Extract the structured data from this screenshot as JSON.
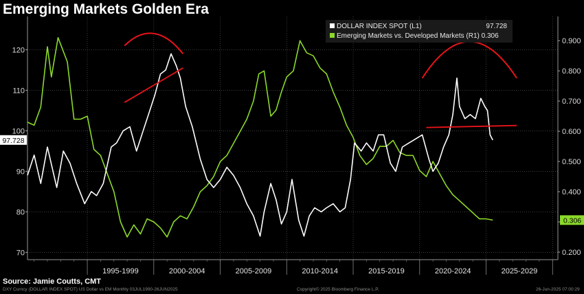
{
  "title": "Emerging Markets Golden Era",
  "source": "Source: Jamie Coutts, CMT",
  "footer": {
    "left": "DXY Curncy (DOLLAR INDEX SPOT) US Dollar vs EM  Monthly 03JUL1990-26JUN2025",
    "center": "Copyright© 2025 Bloomberg Finance L.P.",
    "right": "26-Jun-2025 07:00:29"
  },
  "colors": {
    "background": "#000000",
    "dxy": "#ffffff",
    "em": "#8cd92a",
    "annotation": "#e8141b",
    "grid": "#555555"
  },
  "chart_data": {
    "type": "line",
    "title": "Emerging Markets Golden Era",
    "x_tick_labels": [
      "1995-1999",
      "2000-2004",
      "2005-2009",
      "2010-2014",
      "2015-2019",
      "2020-2024",
      "2025-2029"
    ],
    "x_range": [
      1990.5,
      2030.4
    ],
    "left_axis": {
      "ticks": [
        70,
        80,
        90,
        100,
        110,
        120
      ],
      "range": [
        68.2,
        128.2
      ]
    },
    "right_axis": {
      "ticks": [
        0.2,
        0.3,
        0.4,
        0.5,
        0.6,
        0.7,
        0.8,
        0.9
      ],
      "tick_labels": [
        "0.200",
        "0.300",
        "0.400",
        "0.500",
        "0.600",
        "0.700",
        "0.800",
        "0.900"
      ],
      "range": [
        0.175,
        0.98
      ]
    },
    "grid": true,
    "legend_position": "top-right",
    "series": [
      {
        "name": "DOLLAR INDEX SPOT (L1)",
        "last_value": 97.728,
        "last_label": "97.728",
        "axis": "left",
        "color": "#ffffff",
        "x": [
          1990.5,
          1991.0,
          1991.5,
          1992.0,
          1992.7,
          1993.2,
          1993.7,
          1994.2,
          1994.8,
          1995.3,
          1995.7,
          1996.2,
          1996.8,
          1997.2,
          1997.7,
          1998.2,
          1998.7,
          1999.1,
          1999.6,
          2000.1,
          2000.5,
          2000.9,
          2001.3,
          2001.7,
          2002.0,
          2002.4,
          2002.9,
          2003.5,
          2004.0,
          2004.5,
          2005.0,
          2005.5,
          2006.0,
          2006.5,
          2007.0,
          2007.5,
          2008.0,
          2008.3,
          2008.8,
          2009.2,
          2009.6,
          2010.0,
          2010.4,
          2010.9,
          2011.3,
          2011.7,
          2012.1,
          2012.6,
          2013.0,
          2013.5,
          2014.0,
          2014.4,
          2014.8,
          2015.1,
          2015.6,
          2016.0,
          2016.5,
          2016.9,
          2017.3,
          2017.8,
          2018.2,
          2018.7,
          2019.2,
          2019.7,
          2020.2,
          2020.7,
          2021.0,
          2021.4,
          2021.8,
          2022.2,
          2022.5,
          2022.8,
          2023.0,
          2023.4,
          2023.8,
          2024.2,
          2024.6,
          2024.9,
          2025.1,
          2025.3,
          2025.5
        ],
        "values": [
          89,
          94,
          87,
          96,
          86,
          95,
          92,
          87,
          82,
          85,
          84,
          87,
          96,
          97,
          100,
          101,
          95,
          99,
          104,
          109,
          114,
          115,
          119,
          116,
          113,
          106,
          101,
          93,
          88,
          86,
          88,
          91,
          89,
          86,
          82,
          79,
          74,
          80,
          87,
          83,
          77,
          80,
          88,
          78,
          74,
          79,
          81,
          80,
          81,
          82,
          80,
          81,
          88,
          97,
          95,
          97,
          95,
          99,
          99,
          92,
          90,
          96,
          97,
          98,
          99,
          93,
          90,
          92,
          96,
          99,
          104,
          113,
          106,
          103,
          104,
          103,
          108,
          106,
          105,
          99,
          97.7
        ]
      },
      {
        "name": "Emerging Markets vs. Developed Markets (R1)",
        "last_value": 0.306,
        "last_label": "0.306",
        "axis": "right",
        "color": "#8cd92a",
        "x": [
          1990.5,
          1991.0,
          1991.5,
          1992.0,
          1992.3,
          1992.8,
          1993.5,
          1994.0,
          1994.5,
          1995.0,
          1995.5,
          1996.0,
          1996.5,
          1997.0,
          1997.5,
          1998.0,
          1998.5,
          1999.0,
          1999.5,
          2000.0,
          2000.5,
          2001.0,
          2001.5,
          2002.0,
          2002.5,
          2003.0,
          2003.5,
          2004.0,
          2004.5,
          2005.0,
          2005.5,
          2006.0,
          2006.5,
          2007.0,
          2007.5,
          2007.9,
          2008.3,
          2008.8,
          2009.2,
          2009.6,
          2010.0,
          2010.5,
          2011.0,
          2011.5,
          2012.0,
          2012.5,
          2013.0,
          2013.5,
          2014.0,
          2014.5,
          2015.0,
          2015.5,
          2016.0,
          2016.5,
          2017.0,
          2017.5,
          2018.0,
          2018.5,
          2019.0,
          2019.5,
          2020.0,
          2020.5,
          2021.0,
          2021.5,
          2022.0,
          2022.5,
          2023.0,
          2023.5,
          2024.0,
          2024.5,
          2025.0,
          2025.5
        ],
        "values": [
          0.63,
          0.62,
          0.68,
          0.88,
          0.78,
          0.91,
          0.83,
          0.64,
          0.64,
          0.65,
          0.54,
          0.52,
          0.46,
          0.4,
          0.3,
          0.25,
          0.29,
          0.26,
          0.31,
          0.3,
          0.28,
          0.25,
          0.3,
          0.32,
          0.31,
          0.35,
          0.4,
          0.42,
          0.45,
          0.5,
          0.52,
          0.56,
          0.6,
          0.64,
          0.7,
          0.79,
          0.8,
          0.65,
          0.67,
          0.73,
          0.78,
          0.8,
          0.9,
          0.86,
          0.85,
          0.81,
          0.79,
          0.73,
          0.68,
          0.62,
          0.58,
          0.52,
          0.49,
          0.51,
          0.55,
          0.55,
          0.57,
          0.53,
          0.52,
          0.52,
          0.47,
          0.45,
          0.5,
          0.46,
          0.42,
          0.39,
          0.37,
          0.35,
          0.33,
          0.31,
          0.31,
          0.306
        ]
      }
    ],
    "annotations": [
      {
        "type": "arc",
        "x": [
          1997.8,
          2002.2
        ],
        "y": [
          121,
          119
        ],
        "peak": 124,
        "axis": "left"
      },
      {
        "type": "line",
        "x1": 1997.8,
        "y1": 107,
        "x2": 2002.2,
        "y2": 115.5,
        "axis": "left"
      },
      {
        "type": "arc",
        "x": [
          2020.2,
          2027.3
        ],
        "y": [
          113,
          113
        ],
        "peak": 122,
        "axis": "left"
      },
      {
        "type": "line",
        "x1": 2020.5,
        "y1": 100.8,
        "x2": 2027.3,
        "y2": 101.3,
        "axis": "left"
      }
    ]
  }
}
